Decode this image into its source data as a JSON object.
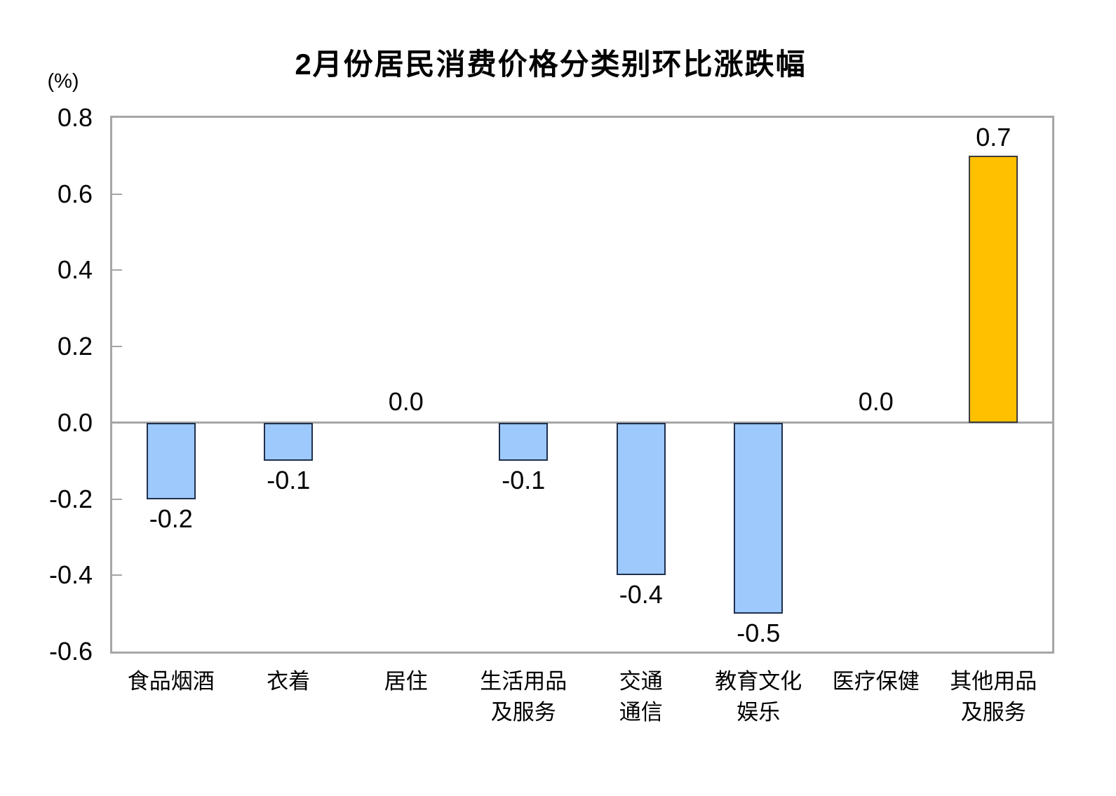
{
  "chart_data": {
    "type": "bar",
    "title": "2月份居民消费价格分类别环比涨跌幅",
    "unit_label": "(%)",
    "categories": [
      "食品烟酒",
      "衣着",
      "居住",
      "生活用品\n及服务",
      "交通\n通信",
      "教育文化\n娱乐",
      "医疗保健",
      "其他用品\n及服务"
    ],
    "values": [
      -0.2,
      -0.1,
      0.0,
      -0.1,
      -0.4,
      -0.5,
      0.0,
      0.7
    ],
    "value_labels": [
      "-0.2",
      "-0.1",
      "0.0",
      "-0.1",
      "-0.4",
      "-0.5",
      "0.0",
      "0.7"
    ],
    "ytick_labels": [
      "0.8",
      "0.6",
      "0.4",
      "0.2",
      "0.0",
      "-0.2",
      "-0.4",
      "-0.6"
    ],
    "ytick_values": [
      0.8,
      0.6,
      0.4,
      0.2,
      0.0,
      -0.2,
      -0.4,
      -0.6
    ],
    "ylim": [
      -0.6,
      0.8
    ],
    "grid": false,
    "legend": "none",
    "highlight_index": 7,
    "colors": {
      "bar_fill": "#9DC9FC",
      "bar_border": "#1F2F4D",
      "highlight_fill": "#FFC000",
      "highlight_border": "#3D3D3D",
      "axis": "#A6A6A6",
      "text": "#000000"
    }
  }
}
